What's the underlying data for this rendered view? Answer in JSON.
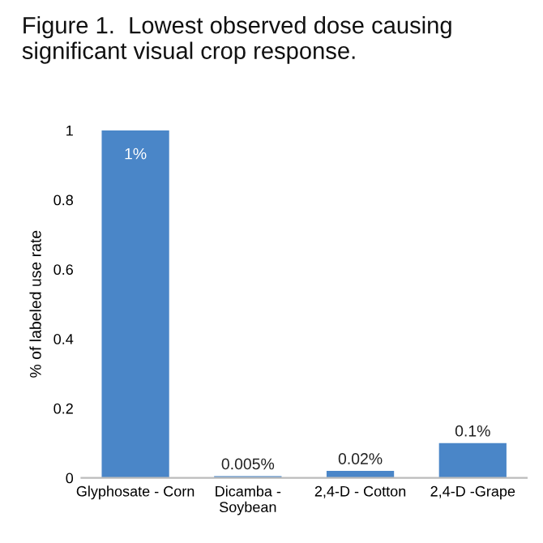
{
  "chart_data": {
    "type": "bar",
    "title": "Figure 1.  Lowest observed dose causing\nsignificant visual crop response.",
    "ylabel": "% of labeled use rate",
    "categories": [
      "Glyphosate - Corn",
      "Dicamba -\nSoybean",
      "2,4-D - Cotton",
      "2,4-D -Grape"
    ],
    "values": [
      1,
      0.005,
      0.02,
      0.1
    ],
    "value_labels": [
      "1%",
      "0.005%",
      "0.02%",
      "0.1%"
    ],
    "color": "#4a86c8",
    "ylim": [
      0,
      1
    ],
    "yticks": [
      0,
      0.2,
      0.4,
      0.6,
      0.8,
      1
    ],
    "grid": false,
    "legend": false
  }
}
